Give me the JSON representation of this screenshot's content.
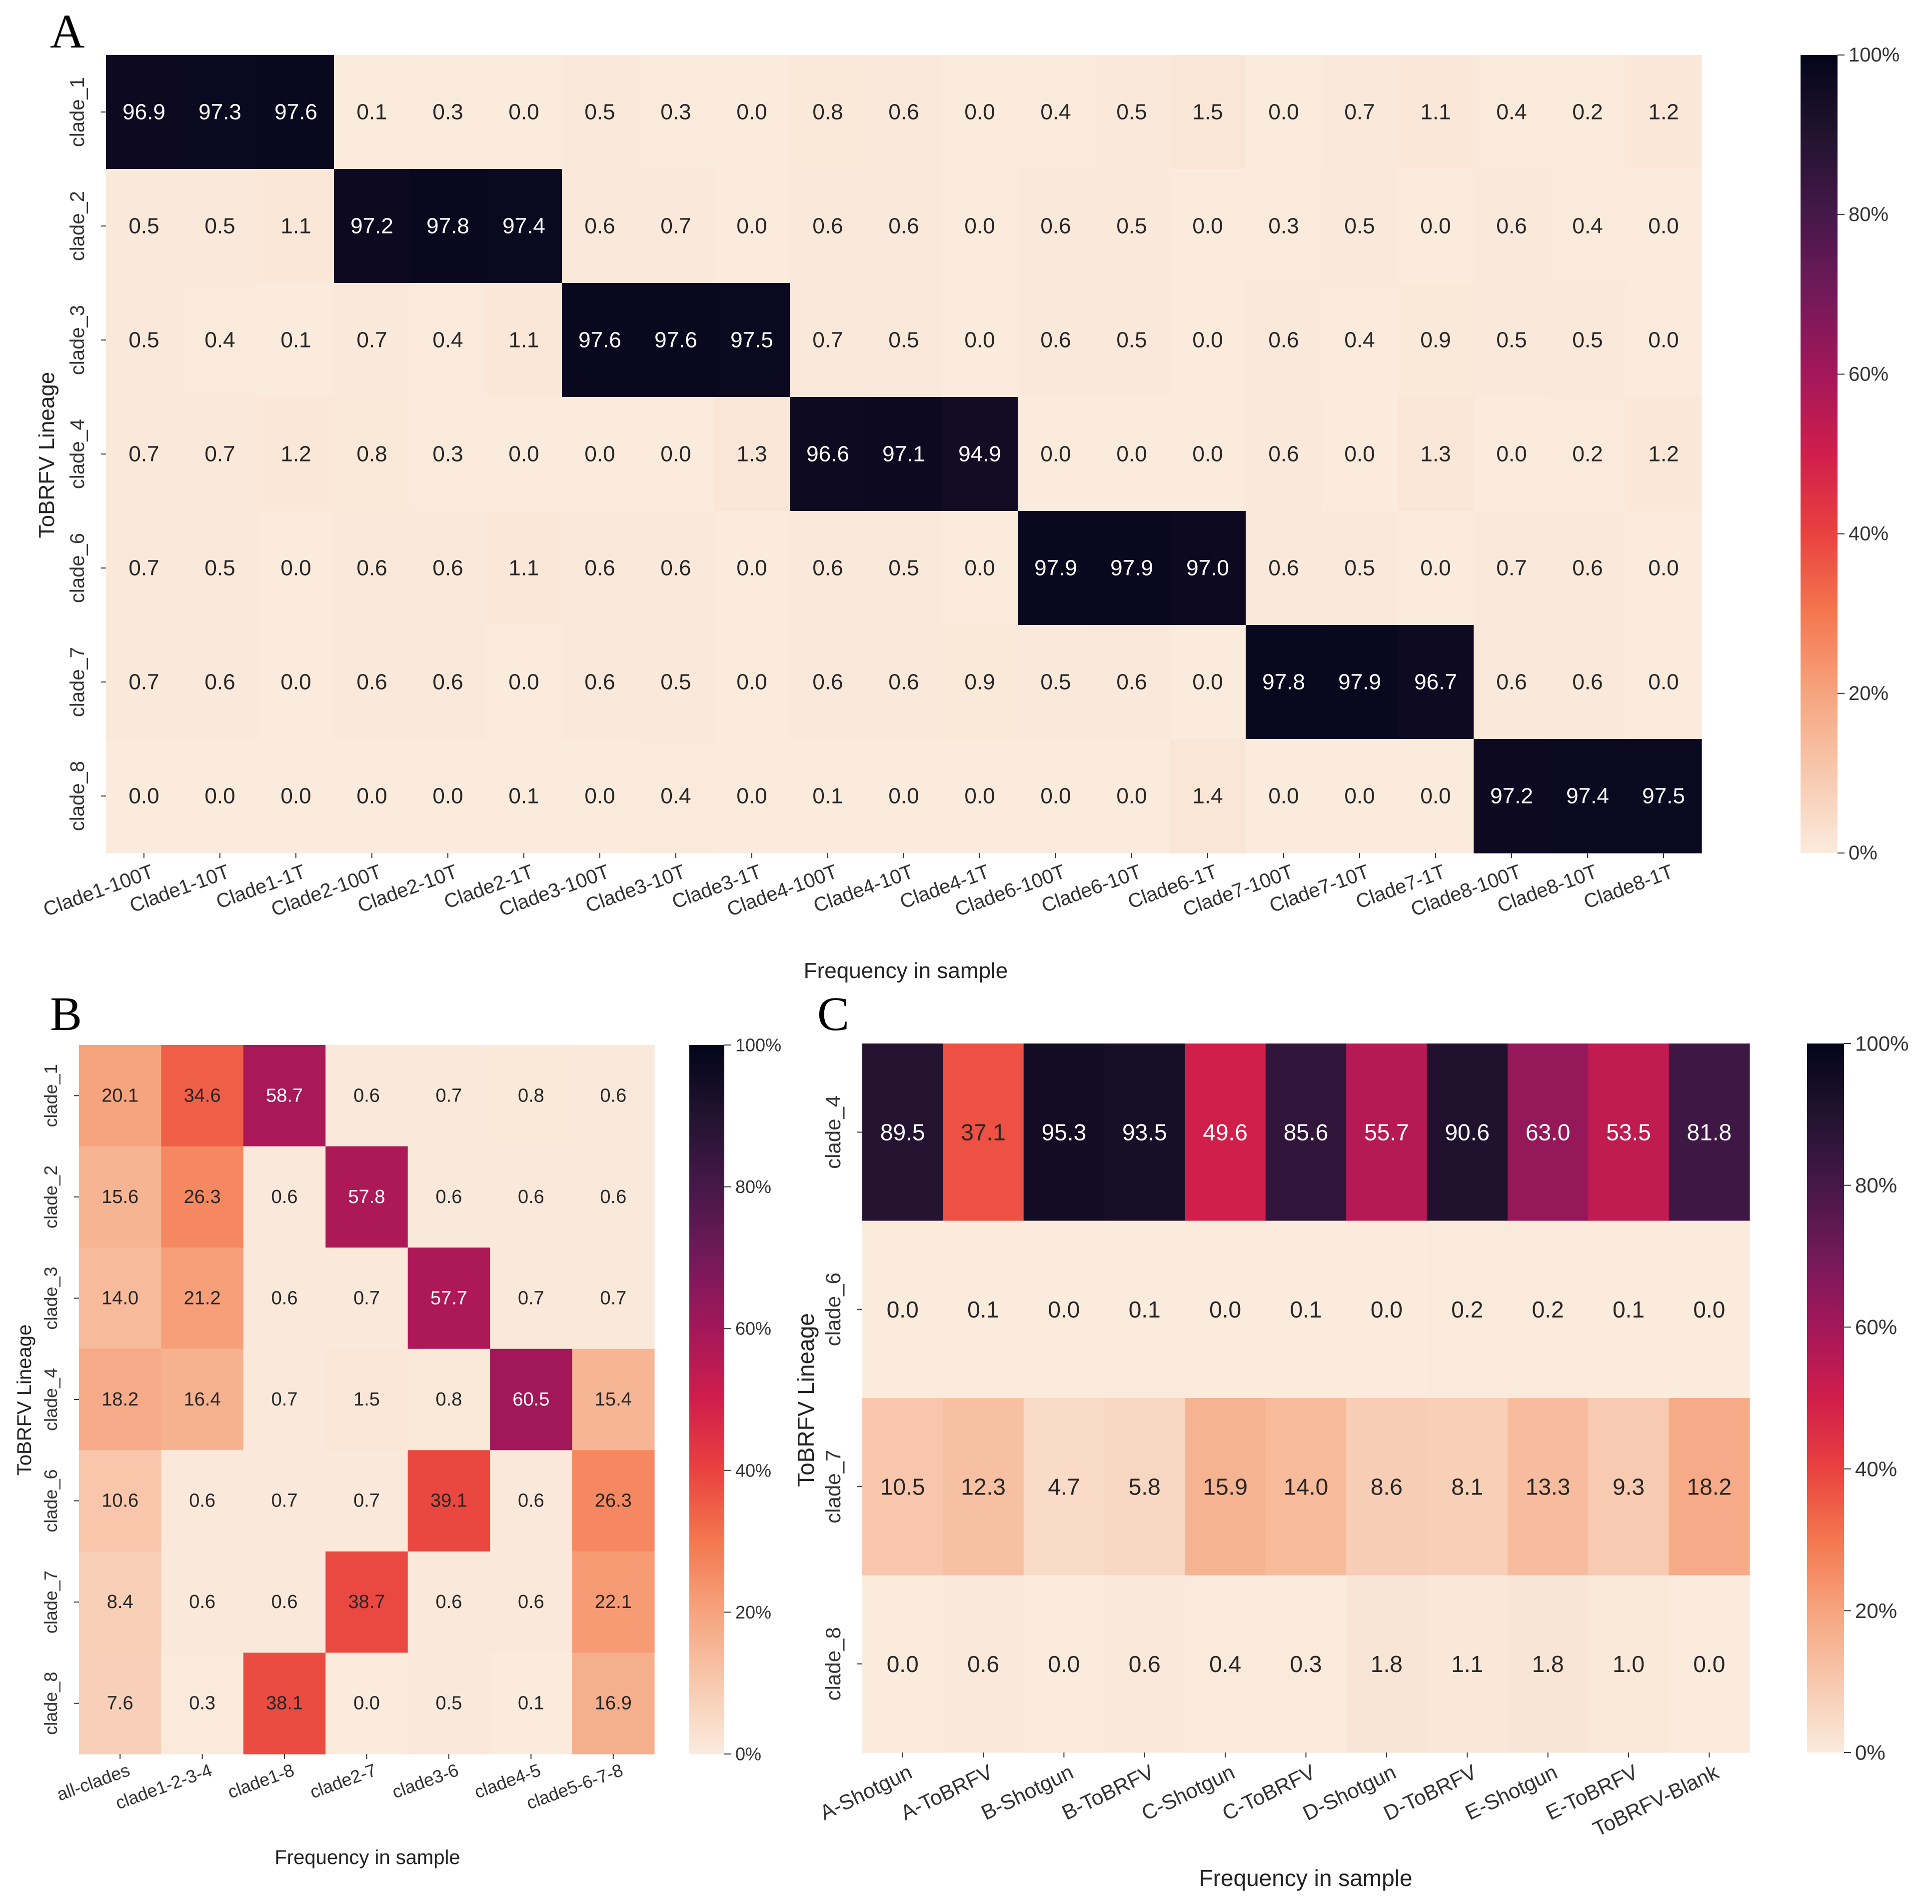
{
  "chart_data": [
    {
      "type": "heatmap",
      "panel": "A",
      "xlabel": "Frequency in sample",
      "ylabel": "ToBRFV Lineage",
      "rows": [
        "clade_1",
        "clade_2",
        "clade_3",
        "clade_4",
        "clade_6",
        "clade_7",
        "clade_8"
      ],
      "columns": [
        "Clade1-100T",
        "Clade1-10T",
        "Clade1-1T",
        "Clade2-100T",
        "Clade2-10T",
        "Clade2-1T",
        "Clade3-100T",
        "Clade3-10T",
        "Clade3-1T",
        "Clade4-100T",
        "Clade4-10T",
        "Clade4-1T",
        "Clade6-100T",
        "Clade6-10T",
        "Clade6-1T",
        "Clade7-100T",
        "Clade7-10T",
        "Clade7-1T",
        "Clade8-100T",
        "Clade8-10T",
        "Clade8-1T"
      ],
      "values": [
        [
          96.9,
          97.3,
          97.6,
          0.1,
          0.3,
          0.0,
          0.5,
          0.3,
          0.0,
          0.8,
          0.6,
          0.0,
          0.4,
          0.5,
          1.5,
          0.0,
          0.7,
          1.1,
          0.4,
          0.2,
          1.2
        ],
        [
          0.5,
          0.5,
          1.1,
          97.2,
          97.8,
          97.4,
          0.6,
          0.7,
          0.0,
          0.6,
          0.6,
          0.0,
          0.6,
          0.5,
          0.0,
          0.3,
          0.5,
          0.0,
          0.6,
          0.4,
          0.0
        ],
        [
          0.5,
          0.4,
          0.1,
          0.7,
          0.4,
          1.1,
          97.6,
          97.6,
          97.5,
          0.7,
          0.5,
          0.0,
          0.6,
          0.5,
          0.0,
          0.6,
          0.4,
          0.9,
          0.5,
          0.5,
          0.0
        ],
        [
          0.7,
          0.7,
          1.2,
          0.8,
          0.3,
          0.0,
          0.0,
          0.0,
          1.3,
          96.6,
          97.1,
          94.9,
          0.0,
          0.0,
          0.0,
          0.6,
          0.0,
          1.3,
          0.0,
          0.2,
          1.2
        ],
        [
          0.7,
          0.5,
          0.0,
          0.6,
          0.6,
          1.1,
          0.6,
          0.6,
          0.0,
          0.6,
          0.5,
          0.0,
          97.9,
          97.9,
          97.0,
          0.6,
          0.5,
          0.0,
          0.7,
          0.6,
          0.0
        ],
        [
          0.7,
          0.6,
          0.0,
          0.6,
          0.6,
          0.0,
          0.6,
          0.5,
          0.0,
          0.6,
          0.6,
          0.9,
          0.5,
          0.6,
          0.0,
          97.8,
          97.9,
          96.7,
          0.6,
          0.6,
          0.0
        ],
        [
          0.0,
          0.0,
          0.0,
          0.0,
          0.0,
          0.1,
          0.0,
          0.4,
          0.0,
          0.1,
          0.0,
          0.0,
          0.0,
          0.0,
          1.4,
          0.0,
          0.0,
          0.0,
          97.2,
          97.4,
          97.5
        ]
      ],
      "colorbar": {
        "ticks": [
          "0%",
          "20%",
          "40%",
          "60%",
          "80%",
          "100%"
        ],
        "range": [
          0,
          100
        ]
      }
    },
    {
      "type": "heatmap",
      "panel": "B",
      "xlabel": "Frequency in sample",
      "ylabel": "ToBRFV Lineage",
      "rows": [
        "clade_1",
        "clade_2",
        "clade_3",
        "clade_4",
        "clade_6",
        "clade_7",
        "clade_8"
      ],
      "columns": [
        "all-clades",
        "clade1-2-3-4",
        "clade1-8",
        "clade2-7",
        "clade3-6",
        "clade4-5",
        "clade5-6-7-8"
      ],
      "values": [
        [
          20.1,
          34.6,
          58.7,
          0.6,
          0.7,
          0.8,
          0.6
        ],
        [
          15.6,
          26.3,
          0.6,
          57.8,
          0.6,
          0.6,
          0.6
        ],
        [
          14.0,
          21.2,
          0.6,
          0.7,
          57.7,
          0.7,
          0.7
        ],
        [
          18.2,
          16.4,
          0.7,
          1.5,
          0.8,
          60.5,
          15.4
        ],
        [
          10.6,
          0.6,
          0.7,
          0.7,
          39.1,
          0.6,
          26.3
        ],
        [
          8.4,
          0.6,
          0.6,
          38.7,
          0.6,
          0.6,
          22.1
        ],
        [
          7.6,
          0.3,
          38.1,
          0.0,
          0.5,
          0.1,
          16.9
        ]
      ],
      "colorbar": {
        "ticks": [
          "0%",
          "20%",
          "40%",
          "60%",
          "80%",
          "100%"
        ],
        "range": [
          0,
          100
        ]
      }
    },
    {
      "type": "heatmap",
      "panel": "C",
      "xlabel": "Frequency in sample",
      "ylabel": "ToBRFV Lineage",
      "rows": [
        "clade_4",
        "clade_6",
        "clade_7",
        "clade_8"
      ],
      "columns": [
        "A-Shotgun",
        "A-ToBRFV",
        "B-Shotgun",
        "B-ToBRFV",
        "C-Shotgun",
        "C-ToBRFV",
        "D-Shotgun",
        "D-ToBRFV",
        "E-Shotgun",
        "E-ToBRFV",
        "ToBRFV-Blank"
      ],
      "values": [
        [
          89.5,
          37.1,
          95.3,
          93.5,
          49.6,
          85.6,
          55.7,
          90.6,
          63.0,
          53.5,
          81.8
        ],
        [
          0.0,
          0.1,
          0.0,
          0.1,
          0.0,
          0.1,
          0.0,
          0.2,
          0.2,
          0.1,
          0.0
        ],
        [
          10.5,
          12.3,
          4.7,
          5.8,
          15.9,
          14.0,
          8.6,
          8.1,
          13.3,
          9.3,
          18.2
        ],
        [
          0.0,
          0.6,
          0.0,
          0.6,
          0.4,
          0.3,
          1.8,
          1.1,
          1.8,
          1.0,
          0.0
        ]
      ],
      "colorbar": {
        "ticks": [
          "0%",
          "20%",
          "40%",
          "60%",
          "80%",
          "100%"
        ],
        "range": [
          0,
          100
        ]
      }
    }
  ]
}
